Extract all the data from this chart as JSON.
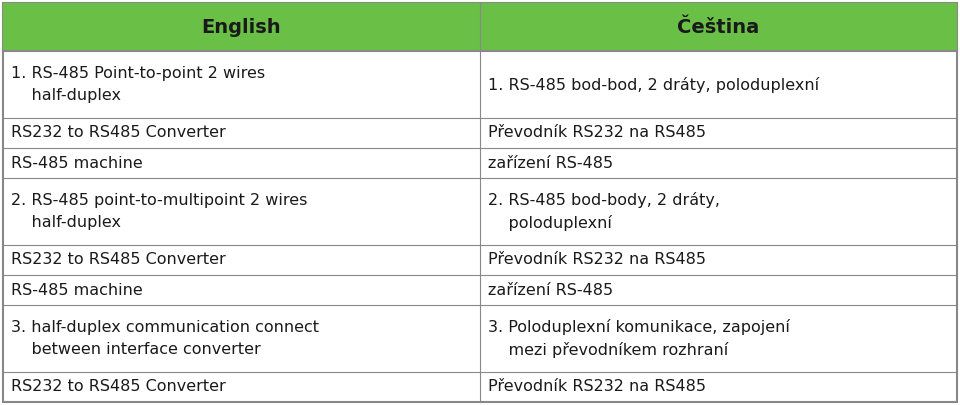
{
  "header": [
    "English",
    "Čeština"
  ],
  "header_bg": "#6abf47",
  "header_text_color": "#1a1a1a",
  "header_font_size": 14,
  "body_font_size": 11.5,
  "col_split": 0.5,
  "line_color": "#888888",
  "bg_color": "#ffffff",
  "outer_border_lw": 1.5,
  "inner_lw": 0.8,
  "rows": [
    {
      "left": "1. RS-485 Point-to-point 2 wires\n    half-duplex",
      "right": "1. RS-485 bod-bod, 2 dráty, poloduplexní",
      "tall": true
    },
    {
      "left": "RS232 to RS485 Converter",
      "right": "Převodník RS232 na RS485",
      "tall": false
    },
    {
      "left": "RS-485 machine",
      "right": "zařízení RS-485",
      "tall": false
    },
    {
      "left": "2. RS-485 point-to-multipoint 2 wires\n    half-duplex",
      "right": "2. RS-485 bod-body, 2 dráty,\n    poloduplexní",
      "tall": true
    },
    {
      "left": "RS232 to RS485 Converter",
      "right": "Převodník RS232 na RS485",
      "tall": false
    },
    {
      "left": "RS-485 machine",
      "right": "zařízení RS-485",
      "tall": false
    },
    {
      "left": "3. half-duplex communication connect\n    between interface converter",
      "right": "3. Poloduplexní komunikace, zapojení\n    mezi převodníkem rozhraní",
      "tall": true
    },
    {
      "left": "RS232 to RS485 Converter",
      "right": "Převodník RS232 na RS485",
      "tall": false
    }
  ],
  "row_heights_units": [
    1.6,
    2.2,
    1.0,
    1.0,
    2.2,
    1.0,
    1.0,
    2.2,
    1.0
  ]
}
